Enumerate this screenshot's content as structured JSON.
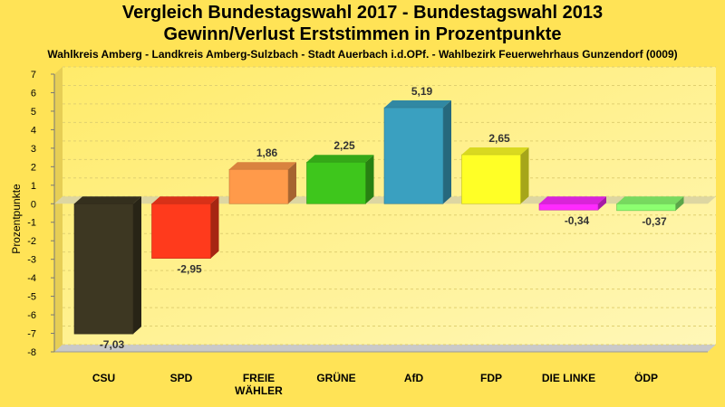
{
  "chart_data": {
    "type": "bar",
    "title": "Vergleich Bundestagswahl 2017 - Bundestagswahl 2013",
    "subtitle": "Gewinn/Verlust Erststimmen in Prozentpunkte",
    "caption": "Wahlkreis Amberg - Landkreis Amberg-Sulzbach - Stadt Auerbach i.d.OPf. - Wahlbezirk Feuerwehrhaus Gunzendorf (0009)",
    "ylabel": "Prozentpunkte",
    "xlabel": "",
    "ylim": [
      -8,
      7
    ],
    "yticks": [
      7,
      6,
      5,
      4,
      3,
      2,
      1,
      0,
      -1,
      -2,
      -3,
      -4,
      -5,
      -6,
      -7,
      -8
    ],
    "grid": true,
    "categories": [
      [
        "CSU"
      ],
      [
        "SPD"
      ],
      [
        "FREIE",
        "WÄHLER"
      ],
      [
        "GRÜNE"
      ],
      [
        "AfD"
      ],
      [
        "FDP"
      ],
      [
        "DIE LINKE"
      ],
      [
        "ÖDP"
      ]
    ],
    "values": [
      -7.03,
      -2.95,
      1.86,
      2.25,
      5.19,
      2.65,
      -0.34,
      -0.37
    ],
    "value_labels": [
      "-7,03",
      "-2,95",
      "1,86",
      "2,25",
      "5,19",
      "2,65",
      "-0,34",
      "-0,37"
    ],
    "colors": [
      "#3d3722",
      "#ff3a1c",
      "#ff9a4a",
      "#3ec61c",
      "#3aa0c0",
      "#ffff26",
      "#ff2aff",
      "#8cff70"
    ]
  }
}
